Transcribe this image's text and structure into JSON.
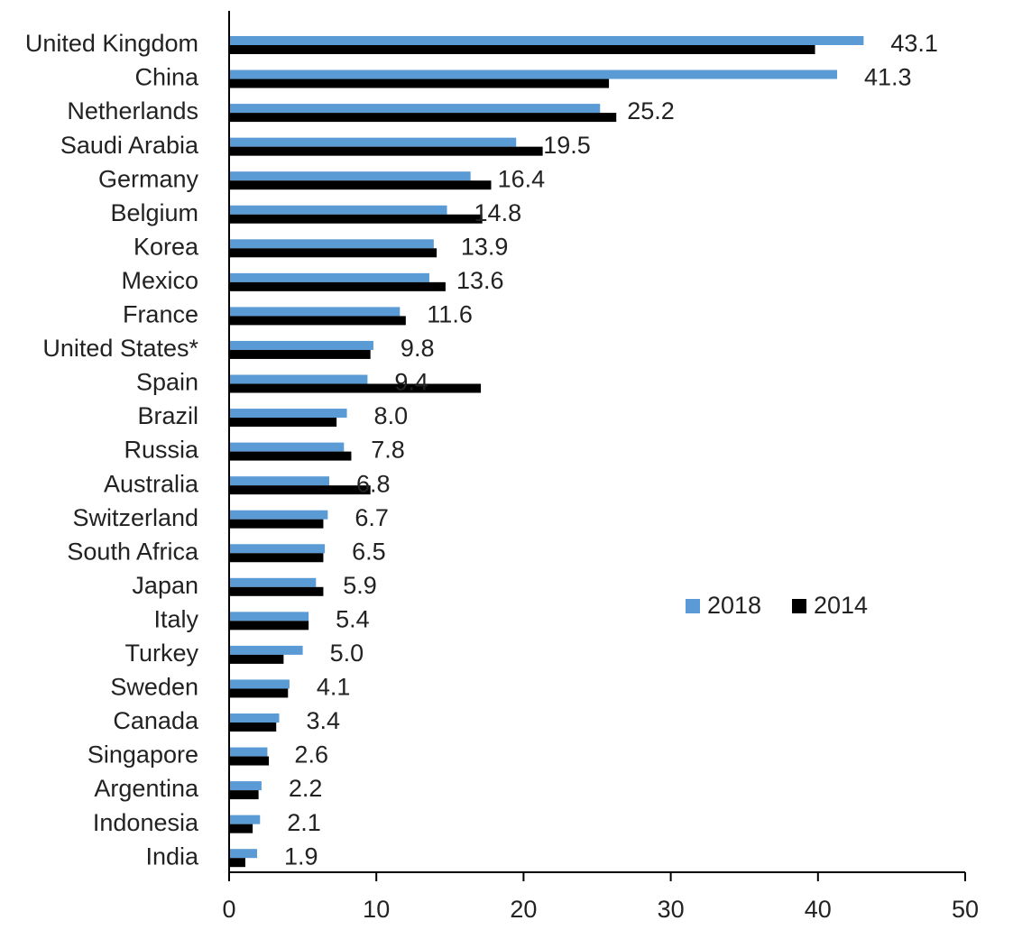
{
  "chart_data": {
    "type": "bar",
    "orientation": "horizontal",
    "categories": [
      "United Kingdom",
      "China",
      "Netherlands",
      "Saudi Arabia",
      "Germany",
      "Belgium",
      "Korea",
      "Mexico",
      "France",
      "United States*",
      "Spain",
      "Brazil",
      "Russia",
      "Australia",
      "Switzerland",
      "South Africa",
      "Japan",
      "Italy",
      "Turkey",
      "Sweden",
      "Canada",
      "Singapore",
      "Argentina",
      "Indonesia",
      "India"
    ],
    "series": [
      {
        "name": "2018",
        "color": "#5b9bd5",
        "values": [
          43.1,
          41.3,
          25.2,
          19.5,
          16.4,
          14.8,
          13.9,
          13.6,
          11.6,
          9.8,
          9.4,
          8.0,
          7.8,
          6.8,
          6.7,
          6.5,
          5.9,
          5.4,
          5.0,
          4.1,
          3.4,
          2.6,
          2.2,
          2.1,
          1.9
        ],
        "value_labels": [
          "43.1",
          "41.3",
          "25.2",
          "19.5",
          "16.4",
          "14.8",
          "13.9",
          "13.6",
          "11.6",
          "9.8",
          "9.4",
          "8.0",
          "7.8",
          "6.8",
          "6.7",
          "6.5",
          "5.9",
          "5.4",
          "5.0",
          "4.1",
          "3.4",
          "2.6",
          "2.2",
          "2.1",
          "1.9"
        ]
      },
      {
        "name": "2014",
        "color": "#000000",
        "values": [
          39.8,
          25.8,
          26.3,
          21.3,
          17.8,
          17.2,
          14.1,
          14.7,
          12.0,
          9.6,
          17.1,
          7.3,
          8.3,
          9.6,
          6.4,
          6.4,
          6.4,
          5.4,
          3.7,
          4.0,
          3.2,
          2.7,
          2.0,
          1.6,
          1.1
        ]
      }
    ],
    "xlim": [
      0,
      50
    ],
    "xticks": [
      0,
      10,
      20,
      30,
      40,
      50
    ],
    "legend": "right"
  }
}
